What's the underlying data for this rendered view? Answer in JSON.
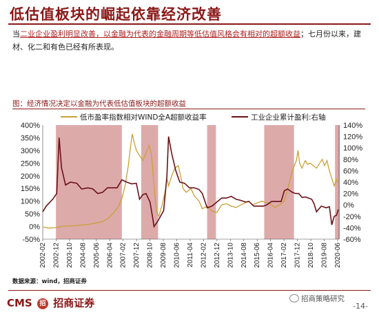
{
  "slide": {
    "title": "低估值板块的崛起依靠经济改善",
    "paragraph_prefix": "当",
    "paragraph_highlight1": "二业企业盈利明显改善，以金融为代表的金融周期等低估值风格会有相对的超额收益",
    "paragraph_suffix": "；七月份以来，建材、化二和有色已经有所表现。",
    "chart_heading": "图：经济情况决定以金融为代表低估值板块的超额收益",
    "source": "数据来源：wind，招商证券",
    "logo_text": "CMS",
    "logo_seal": "招",
    "logo_cn": "招商证券",
    "wechat_label": "招商策略研究",
    "page_number": "-14-"
  },
  "colors": {
    "title": "#8b1717",
    "left_series": "#c9a038",
    "right_series": "#6b0f16",
    "shade": "#d28d8d"
  },
  "chart_data": {
    "type": "line",
    "title": "图：经济情况决定以金融为代表低估值板块的超额收益",
    "x_tick_labels": [
      "2002-02",
      "2002-12",
      "2003-10",
      "2004-08",
      "2005-06",
      "2006-04",
      "2007-02",
      "2007-12",
      "2008-10",
      "2009-08",
      "2010-06",
      "2011-04",
      "2012-02",
      "2012-12",
      "2013-10",
      "2014-08",
      "2015-06",
      "2016-04",
      "2017-02",
      "2017-12",
      "2018-10",
      "2019-08",
      "2020-06"
    ],
    "x_range": [
      2002.08,
      2020.5
    ],
    "y_left": {
      "ticks": [
        "-50%",
        "0%",
        "50%",
        "100%",
        "150%",
        "200%",
        "250%",
        "300%",
        "350%",
        "400%"
      ],
      "range": [
        -0.5,
        4.0
      ]
    },
    "y_right": {
      "ticks": [
        "-60%",
        "-40%",
        "-20%",
        "0%",
        "20%",
        "40%",
        "60%",
        "80%",
        "100%",
        "120%",
        "140%"
      ],
      "range": [
        -0.6,
        1.4
      ]
    },
    "legend_placement": "top",
    "shaded_periods": [
      [
        2002.9,
        2007.0
      ],
      [
        2008.2,
        2009.25
      ],
      [
        2012.3,
        2012.85
      ],
      [
        2015.85,
        2017.7
      ],
      [
        2020.25,
        2020.55
      ]
    ],
    "series": [
      {
        "name": "低市盈率指数相对WIND全A超额收益率",
        "axis": "left",
        "points": [
          [
            2002.08,
            -0.02
          ],
          [
            2002.4,
            -0.06
          ],
          [
            2002.9,
            -0.05
          ],
          [
            2003.3,
            0.01
          ],
          [
            2003.7,
            0.02
          ],
          [
            2004.1,
            0.03
          ],
          [
            2004.5,
            0.06
          ],
          [
            2004.9,
            0.08
          ],
          [
            2005.3,
            0.13
          ],
          [
            2005.6,
            0.16
          ],
          [
            2005.9,
            0.22
          ],
          [
            2006.2,
            0.35
          ],
          [
            2006.5,
            0.55
          ],
          [
            2006.8,
            0.8
          ],
          [
            2007.0,
            1.1
          ],
          [
            2007.2,
            1.6
          ],
          [
            2007.4,
            2.4
          ],
          [
            2007.55,
            3.2
          ],
          [
            2007.65,
            3.65
          ],
          [
            2007.75,
            3.35
          ],
          [
            2007.9,
            3.0
          ],
          [
            2008.1,
            2.8
          ],
          [
            2008.3,
            2.6
          ],
          [
            2008.5,
            2.9
          ],
          [
            2008.7,
            3.2
          ],
          [
            2008.85,
            2.8
          ],
          [
            2009.0,
            1.6
          ],
          [
            2009.15,
            0.6
          ],
          [
            2009.3,
            0.4
          ],
          [
            2009.5,
            0.85
          ],
          [
            2009.7,
            1.4
          ],
          [
            2009.8,
            1.9
          ],
          [
            2009.9,
            1.6
          ],
          [
            2010.1,
            2.0
          ],
          [
            2010.3,
            2.3
          ],
          [
            2010.5,
            2.4
          ],
          [
            2010.65,
            2.0
          ],
          [
            2010.8,
            1.5
          ],
          [
            2011.0,
            1.35
          ],
          [
            2011.3,
            1.5
          ],
          [
            2011.5,
            1.2
          ],
          [
            2011.8,
            1.0
          ],
          [
            2012.0,
            0.7
          ],
          [
            2012.3,
            0.8
          ],
          [
            2012.6,
            0.6
          ],
          [
            2012.9,
            0.55
          ],
          [
            2013.2,
            0.85
          ],
          [
            2013.5,
            0.9
          ],
          [
            2013.8,
            0.8
          ],
          [
            2014.1,
            0.75
          ],
          [
            2014.4,
            0.85
          ],
          [
            2014.7,
            0.95
          ],
          [
            2014.9,
            1.0
          ],
          [
            2015.1,
            0.85
          ],
          [
            2015.3,
            0.9
          ],
          [
            2015.5,
            0.95
          ],
          [
            2015.7,
            1.0
          ],
          [
            2015.9,
            0.95
          ],
          [
            2016.2,
            0.9
          ],
          [
            2016.5,
            0.75
          ],
          [
            2016.8,
            0.85
          ],
          [
            2017.1,
            1.0
          ],
          [
            2017.4,
            1.7
          ],
          [
            2017.6,
            2.2
          ],
          [
            2017.85,
            2.6
          ],
          [
            2017.95,
            3.0
          ],
          [
            2018.05,
            2.5
          ],
          [
            2018.2,
            2.3
          ],
          [
            2018.4,
            2.6
          ],
          [
            2018.55,
            2.45
          ],
          [
            2018.7,
            2.5
          ],
          [
            2018.9,
            2.4
          ],
          [
            2019.1,
            2.3
          ],
          [
            2019.3,
            2.5
          ],
          [
            2019.45,
            2.65
          ],
          [
            2019.6,
            2.4
          ],
          [
            2019.75,
            2.6
          ],
          [
            2019.9,
            2.2
          ],
          [
            2020.05,
            1.9
          ],
          [
            2020.2,
            1.6
          ],
          [
            2020.35,
            1.85
          ],
          [
            2020.45,
            1.7
          ]
        ]
      },
      {
        "name": "工业企业累计盈利:右轴",
        "axis": "right",
        "points": [
          [
            2002.08,
            -0.12
          ],
          [
            2002.3,
            -0.02
          ],
          [
            2002.7,
            0.1
          ],
          [
            2002.95,
            0.2
          ],
          [
            2003.1,
            1.18
          ],
          [
            2003.25,
            0.65
          ],
          [
            2003.5,
            0.35
          ],
          [
            2003.8,
            0.4
          ],
          [
            2004.2,
            0.38
          ],
          [
            2004.5,
            0.28
          ],
          [
            2004.9,
            0.3
          ],
          [
            2005.2,
            0.28
          ],
          [
            2005.5,
            0.2
          ],
          [
            2005.8,
            0.22
          ],
          [
            2006.1,
            0.3
          ],
          [
            2006.4,
            0.3
          ],
          [
            2006.7,
            0.3
          ],
          [
            2007.0,
            0.44
          ],
          [
            2007.3,
            0.4
          ],
          [
            2007.6,
            0.37
          ],
          [
            2007.9,
            0.38
          ],
          [
            2008.1,
            0.1
          ],
          [
            2008.3,
            0.18
          ],
          [
            2008.5,
            0.2
          ],
          [
            2008.75,
            0.05
          ],
          [
            2008.9,
            -0.2
          ],
          [
            2009.0,
            -0.38
          ],
          [
            2009.2,
            -0.3
          ],
          [
            2009.4,
            -0.2
          ],
          [
            2009.6,
            -0.1
          ],
          [
            2009.8,
            0.5
          ],
          [
            2009.9,
            1.2
          ],
          [
            2010.1,
            0.9
          ],
          [
            2010.35,
            0.6
          ],
          [
            2010.6,
            0.4
          ],
          [
            2010.9,
            0.38
          ],
          [
            2011.2,
            0.3
          ],
          [
            2011.5,
            0.3
          ],
          [
            2011.8,
            0.27
          ],
          [
            2012.0,
            0.2
          ],
          [
            2012.3,
            -0.05
          ],
          [
            2012.6,
            -0.02
          ],
          [
            2012.9,
            0.05
          ],
          [
            2013.2,
            0.12
          ],
          [
            2013.5,
            0.12
          ],
          [
            2013.8,
            0.15
          ],
          [
            2014.1,
            0.1
          ],
          [
            2014.4,
            0.08
          ],
          [
            2014.7,
            0.05
          ],
          [
            2014.9,
            0.06
          ],
          [
            2015.2,
            -0.02
          ],
          [
            2015.5,
            -0.02
          ],
          [
            2015.8,
            -0.02
          ],
          [
            2016.0,
            0.0
          ],
          [
            2016.3,
            0.06
          ],
          [
            2016.6,
            0.06
          ],
          [
            2016.9,
            0.06
          ],
          [
            2017.1,
            0.25
          ],
          [
            2017.3,
            0.28
          ],
          [
            2017.6,
            0.22
          ],
          [
            2017.8,
            0.2
          ],
          [
            2018.0,
            0.2
          ],
          [
            2018.2,
            0.13
          ],
          [
            2018.4,
            0.14
          ],
          [
            2018.6,
            0.12
          ],
          [
            2018.8,
            0.1
          ],
          [
            2018.95,
            0.02
          ],
          [
            2019.1,
            -0.12
          ],
          [
            2019.4,
            -0.02
          ],
          [
            2019.7,
            -0.05
          ],
          [
            2019.9,
            -0.03
          ],
          [
            2020.05,
            -0.35
          ],
          [
            2020.2,
            -0.2
          ],
          [
            2020.35,
            -0.18
          ],
          [
            2020.45,
            -0.08
          ]
        ]
      }
    ]
  }
}
